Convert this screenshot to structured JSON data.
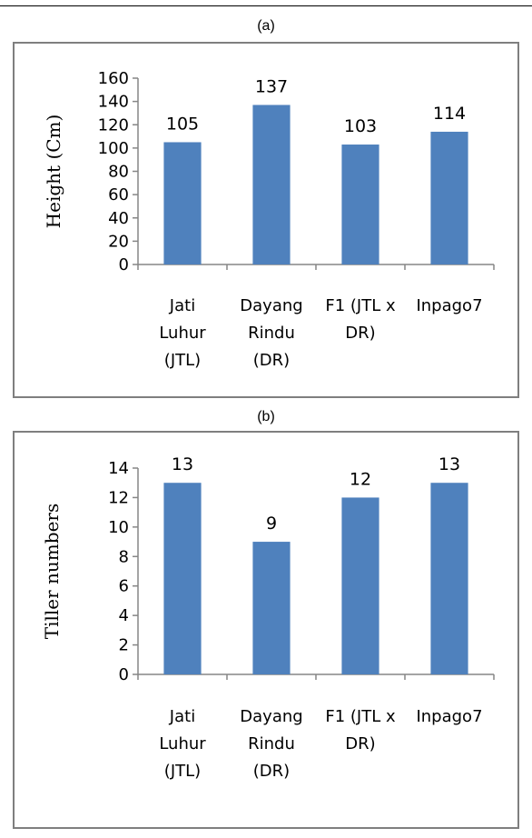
{
  "panels": {
    "a_label": "(a)",
    "b_label": "(b)"
  },
  "colors": {
    "bar": "#4f81bd",
    "frame": "#7f7f7f",
    "axis": "#868686"
  },
  "chart_data": [
    {
      "type": "bar",
      "title": "",
      "xlabel": "",
      "ylabel": "Height (Cm)",
      "categories": [
        [
          "Jati",
          "Luhur",
          "(JTL)"
        ],
        [
          "Dayang",
          "Rindu",
          "(DR)"
        ],
        [
          "F1 (JTL x",
          "DR)"
        ],
        [
          "Inpago7"
        ]
      ],
      "values": [
        105,
        137,
        103,
        114
      ],
      "data_labels": [
        "105",
        "137",
        "103",
        "114"
      ],
      "ylim": [
        0,
        160
      ],
      "yticks": [
        0,
        20,
        40,
        60,
        80,
        100,
        120,
        140,
        160
      ],
      "ytick_labels": [
        "0",
        "20",
        "40",
        "60",
        "80",
        "100",
        "120",
        "140",
        "160"
      ],
      "grid": false,
      "legend": "none"
    },
    {
      "type": "bar",
      "title": "",
      "xlabel": "",
      "ylabel": "Tiller numbers",
      "categories": [
        [
          "Jati",
          "Luhur",
          "(JTL)"
        ],
        [
          "Dayang",
          "Rindu",
          "(DR)"
        ],
        [
          "F1 (JTL x",
          "DR)"
        ],
        [
          "Inpago7"
        ]
      ],
      "values": [
        13,
        9,
        12,
        13
      ],
      "data_labels": [
        "13",
        "9",
        "12",
        "13"
      ],
      "ylim": [
        0,
        14
      ],
      "yticks": [
        0,
        2,
        4,
        6,
        8,
        10,
        12,
        14
      ],
      "ytick_labels": [
        "0",
        "2",
        "4",
        "6",
        "8",
        "10",
        "12",
        "14"
      ],
      "grid": false,
      "legend": "none"
    }
  ]
}
